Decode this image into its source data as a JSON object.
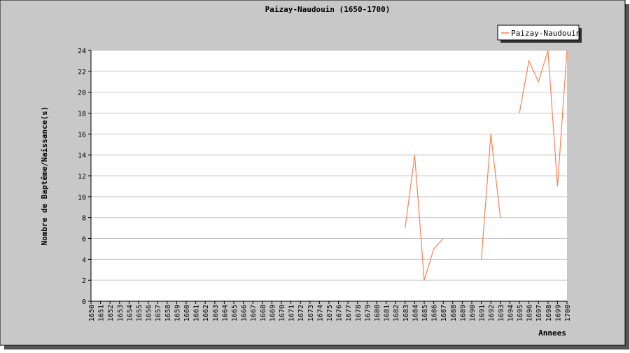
{
  "chart_data": {
    "type": "line",
    "title": "Paizay-Naudouin (1650-1700)",
    "xlabel": "Annees",
    "ylabel": "Nombre de Baptême/Naissance(s)",
    "xlim": [
      1650,
      1700
    ],
    "ylim": [
      0,
      24
    ],
    "yticks": [
      0,
      2,
      4,
      6,
      8,
      10,
      12,
      14,
      16,
      18,
      20,
      22,
      24
    ],
    "grid": true,
    "legend_position": "top-right",
    "series": [
      {
        "name": "Paizay-Naudouin",
        "color": "#ff7f50",
        "points": [
          [
            1683,
            7
          ],
          [
            1684,
            14
          ],
          [
            1685,
            2
          ],
          [
            1686,
            5
          ],
          [
            1687,
            6
          ],
          [
            1688,
            null
          ],
          [
            1689,
            null
          ],
          [
            1690,
            null
          ],
          [
            1691,
            4
          ],
          [
            1692,
            16
          ],
          [
            1693,
            8
          ],
          [
            1694,
            null
          ],
          [
            1695,
            18
          ],
          [
            1696,
            23
          ],
          [
            1697,
            21
          ],
          [
            1698,
            24
          ],
          [
            1699,
            11
          ],
          [
            1700,
            24
          ]
        ]
      }
    ]
  }
}
